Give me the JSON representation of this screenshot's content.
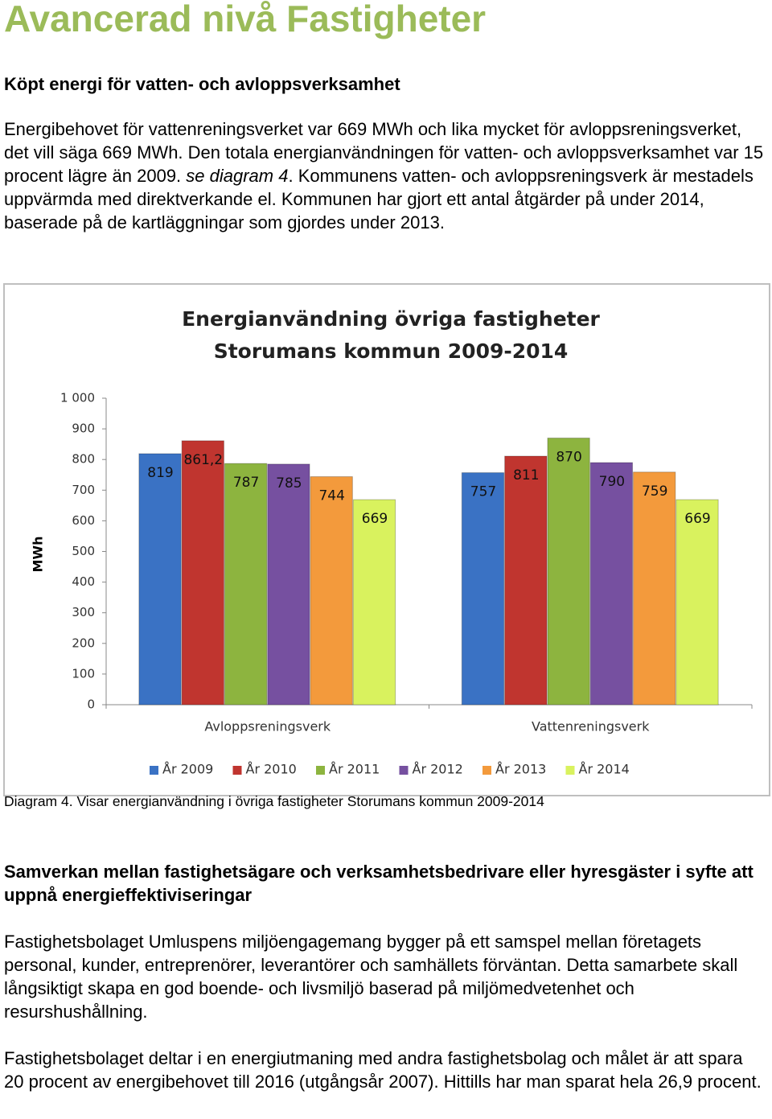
{
  "header": {
    "title": "Avancerad nivå Fastigheter"
  },
  "intro": {
    "heading": "Köpt energi för vatten- och avloppsverksamhet",
    "text_parts": [
      "Energibehovet för vattenreningsverket var 669 MWh och lika mycket för avloppsreningsverket, det vill säga 669 MWh. Den totala energianvändningen för vatten- och avloppsverksamhet var 15 procent lägre än 2009. ",
      "se diagram 4",
      ". Kommunens vatten- och avloppsreningsverk är mestadels uppvärmda med direktverkande el. Kommunen har gjort ett antal åtgärder på under 2014, baserade på de kartläggningar som gjordes under 2013."
    ]
  },
  "chart_data": {
    "type": "bar",
    "title": "Energianvändning övriga fastigheter",
    "subtitle": "Storumans kommun 2009-2014",
    "y_label": "MWh",
    "categories": [
      "Avloppsreningsverk",
      "Vattenreningsverk"
    ],
    "series": [
      {
        "name": "År 2009",
        "color": "#3a72c4",
        "values": [
          819,
          757
        ]
      },
      {
        "name": "År 2010",
        "color": "#c0352f",
        "values": [
          861.2,
          811
        ],
        "value_labels": [
          "861,2",
          "811"
        ]
      },
      {
        "name": "År 2011",
        "color": "#8db43f",
        "values": [
          787,
          870
        ]
      },
      {
        "name": "År 2012",
        "color": "#7650a0",
        "values": [
          785,
          790
        ]
      },
      {
        "name": "År 2013",
        "color": "#f39a3c",
        "values": [
          744,
          759
        ]
      },
      {
        "name": "År 2014",
        "color": "#d9f25e",
        "values": [
          669,
          669
        ]
      }
    ],
    "ylim": [
      0,
      1000
    ],
    "yticks": [
      0,
      100,
      200,
      300,
      400,
      500,
      600,
      700,
      800,
      900,
      {
        "value": 1000,
        "label": "1 000"
      }
    ],
    "grid": false,
    "legend": "bottom"
  },
  "caption": "Diagram 4. Visar energianvändning i övriga fastigheter Storumans kommun 2009-2014",
  "section2": {
    "heading": "Samverkan mellan fastighetsägare och verksamhetsbedrivare eller hyresgäster i syfte att uppnå energieffektiviseringar",
    "paragraphs": [
      "Fastighetsbolaget Umluspens miljöengagemang bygger på ett samspel mellan företagets personal, kunder, entreprenörer, leverantörer och samhällets förväntan. Detta samarbete skall långsiktigt skapa en god boende- och livsmiljö baserad på miljömedvetenhet och resurshushållning.",
      "Fastighetsbolaget deltar i en energiutmaning med andra fastighetsbolag och målet är att spara 20 procent av energibehovet till 2016 (utgångsår 2007). Hittills har man sparat hela 26,9 procent."
    ]
  }
}
